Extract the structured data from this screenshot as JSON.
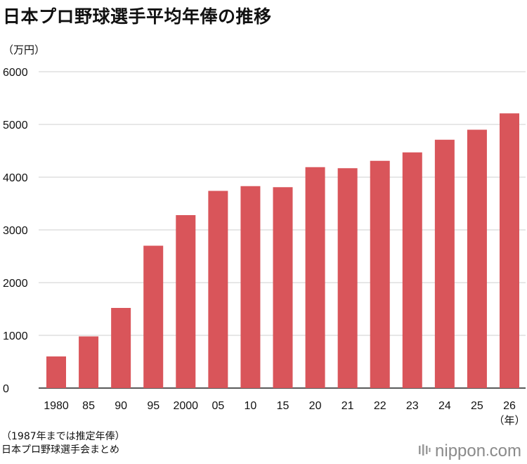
{
  "title": "日本プロ野球選手平均年俸の推移",
  "unit": "（万円）",
  "note": "（1987年までは推定年俸）",
  "source": "日本プロ野球選手会まとめ",
  "logo": {
    "name": "nippon",
    "suffix": "com"
  },
  "colors": {
    "bar": "#d9555a",
    "grid": "#cfcfcf",
    "axis": "#222222"
  },
  "chart_data": {
    "type": "bar",
    "title": "日本プロ野球選手平均年俸の推移",
    "ylabel": "（万円）",
    "xlabel": "",
    "x_unit_label": "（年）",
    "ylim": [
      0,
      6000
    ],
    "yticks": [
      0,
      1000,
      2000,
      3000,
      4000,
      5000,
      6000
    ],
    "grid": true,
    "categories": [
      "1980",
      "85",
      "90",
      "95",
      "2000",
      "05",
      "10",
      "15",
      "20",
      "21",
      "22",
      "23",
      "24",
      "25",
      "26"
    ],
    "values": [
      600,
      980,
      1520,
      2700,
      3280,
      3740,
      3830,
      3810,
      4190,
      4170,
      4310,
      4470,
      4710,
      4900,
      5210
    ]
  }
}
